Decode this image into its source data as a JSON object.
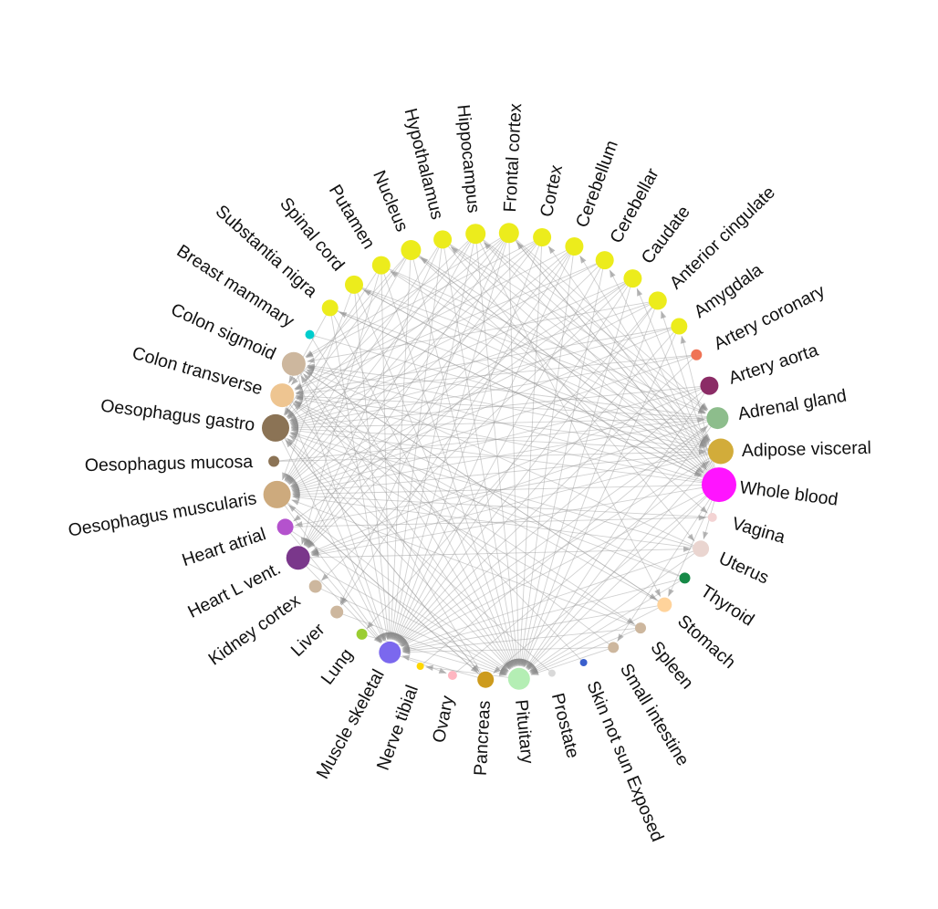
{
  "network": {
    "nodes": [
      {
        "label": "Frontal cortex",
        "color": "#ecec1c",
        "size": 11
      },
      {
        "label": "Cortex",
        "color": "#ecec1c",
        "size": 10
      },
      {
        "label": "Cerebellum",
        "color": "#ecec1c",
        "size": 10
      },
      {
        "label": "Cerebellar",
        "color": "#ecec1c",
        "size": 10
      },
      {
        "label": "Caudate",
        "color": "#ecec1c",
        "size": 10
      },
      {
        "label": "Anterior cingulate",
        "color": "#ecec1c",
        "size": 10
      },
      {
        "label": "Amygdala",
        "color": "#ecec1c",
        "size": 9
      },
      {
        "label": "Artery coronary",
        "color": "#ef7355",
        "size": 6
      },
      {
        "label": "Artery aorta",
        "color": "#8b2c66",
        "size": 10
      },
      {
        "label": "Adrenal gland",
        "color": "#8dbd8c",
        "size": 12
      },
      {
        "label": "Adipose visceral",
        "color": "#d2ac3a",
        "size": 14
      },
      {
        "label": "Whole blood",
        "color": "#ff14ff",
        "size": 19
      },
      {
        "label": "Vagina",
        "color": "#f3d3d3",
        "size": 5
      },
      {
        "label": "Uterus",
        "color": "#ead5d0",
        "size": 9
      },
      {
        "label": "Thyroid",
        "color": "#168947",
        "size": 6
      },
      {
        "label": "Stomach",
        "color": "#ffd39b",
        "size": 8
      },
      {
        "label": "Spleen",
        "color": "#cdb79e",
        "size": 6
      },
      {
        "label": "Small intestine",
        "color": "#cdb79e",
        "size": 6
      },
      {
        "label": "Skin not sun Exposed",
        "color": "#3a5fcd",
        "size": 4
      },
      {
        "label": "Prostate",
        "color": "#d9d9d9",
        "size": 4
      },
      {
        "label": "Pituitary",
        "color": "#b4eeb4",
        "size": 12
      },
      {
        "label": "Pancreas",
        "color": "#cd9b1d",
        "size": 9
      },
      {
        "label": "Ovary",
        "color": "#ffb6c1",
        "size": 5
      },
      {
        "label": "Nerve tibial",
        "color": "#ffd700",
        "size": 4
      },
      {
        "label": "Muscle skeletal",
        "color": "#7b68ee",
        "size": 12
      },
      {
        "label": "Lung",
        "color": "#9acd32",
        "size": 6
      },
      {
        "label": "Liver",
        "color": "#cdb79e",
        "size": 7
      },
      {
        "label": "Kidney cortex",
        "color": "#cdb79e",
        "size": 7
      },
      {
        "label": "Heart L vent.",
        "color": "#7a378b",
        "size": 13
      },
      {
        "label": "Heart atrial",
        "color": "#b452cd",
        "size": 9
      },
      {
        "label": "Oesophagus muscularis",
        "color": "#cdaa7d",
        "size": 15
      },
      {
        "label": "Oesophagus mucosa",
        "color": "#8b7355",
        "size": 6
      },
      {
        "label": "Oesophagus gastro",
        "color": "#8b7355",
        "size": 15
      },
      {
        "label": "Colon transverse",
        "color": "#eec591",
        "size": 13
      },
      {
        "label": "Colon sigmoid",
        "color": "#cdb79e",
        "size": 13
      },
      {
        "label": "Breast mammary",
        "color": "#00cdcd",
        "size": 5
      },
      {
        "label": "Substantia nigra",
        "color": "#ecec1c",
        "size": 9
      },
      {
        "label": "Spinal cord",
        "color": "#ecec1c",
        "size": 10
      },
      {
        "label": "Putamen",
        "color": "#ecec1c",
        "size": 10
      },
      {
        "label": "Nucleus",
        "color": "#ecec1c",
        "size": 11
      },
      {
        "label": "Hypothalamus",
        "color": "#ecec1c",
        "size": 10
      },
      {
        "label": "Hippocampus",
        "color": "#ecec1c",
        "size": 11
      }
    ],
    "edges": [
      [
        11,
        0
      ],
      [
        11,
        1
      ],
      [
        11,
        2
      ],
      [
        11,
        3
      ],
      [
        11,
        4
      ],
      [
        11,
        5
      ],
      [
        11,
        6
      ],
      [
        11,
        20
      ],
      [
        11,
        24
      ],
      [
        11,
        28
      ],
      [
        11,
        30
      ],
      [
        11,
        32
      ],
      [
        11,
        33
      ],
      [
        11,
        34
      ],
      [
        11,
        36
      ],
      [
        11,
        37
      ],
      [
        11,
        38
      ],
      [
        11,
        39
      ],
      [
        11,
        40
      ],
      [
        11,
        41
      ],
      [
        11,
        15
      ],
      [
        11,
        13
      ],
      [
        11,
        17
      ],
      [
        11,
        21
      ],
      [
        0,
        20
      ],
      [
        0,
        24
      ],
      [
        0,
        30
      ],
      [
        0,
        32
      ],
      [
        0,
        28
      ],
      [
        0,
        11
      ],
      [
        0,
        9
      ],
      [
        0,
        10
      ],
      [
        0,
        34
      ],
      [
        0,
        26
      ],
      [
        41,
        20
      ],
      [
        41,
        24
      ],
      [
        41,
        30
      ],
      [
        41,
        10
      ],
      [
        41,
        32
      ],
      [
        41,
        9
      ],
      [
        41,
        28
      ],
      [
        41,
        15
      ],
      [
        40,
        20
      ],
      [
        40,
        24
      ],
      [
        40,
        10
      ],
      [
        40,
        30
      ],
      [
        40,
        9
      ],
      [
        40,
        13
      ],
      [
        40,
        28
      ],
      [
        39,
        20
      ],
      [
        39,
        24
      ],
      [
        39,
        11
      ],
      [
        39,
        10
      ],
      [
        39,
        30
      ],
      [
        39,
        32
      ],
      [
        39,
        12
      ],
      [
        39,
        33
      ],
      [
        38,
        20
      ],
      [
        38,
        24
      ],
      [
        38,
        10
      ],
      [
        38,
        9
      ],
      [
        38,
        32
      ],
      [
        38,
        28
      ],
      [
        37,
        20
      ],
      [
        37,
        24
      ],
      [
        37,
        10
      ],
      [
        37,
        9
      ],
      [
        37,
        11
      ],
      [
        37,
        30
      ],
      [
        36,
        20
      ],
      [
        36,
        24
      ],
      [
        36,
        10
      ],
      [
        36,
        11
      ],
      [
        36,
        33
      ],
      [
        1,
        20
      ],
      [
        1,
        24
      ],
      [
        1,
        30
      ],
      [
        1,
        32
      ],
      [
        1,
        28
      ],
      [
        1,
        34
      ],
      [
        2,
        20
      ],
      [
        2,
        24
      ],
      [
        2,
        30
      ],
      [
        2,
        33
      ],
      [
        2,
        28
      ],
      [
        2,
        26
      ],
      [
        3,
        20
      ],
      [
        3,
        24
      ],
      [
        3,
        32
      ],
      [
        3,
        28
      ],
      [
        3,
        33
      ],
      [
        4,
        20
      ],
      [
        4,
        24
      ],
      [
        4,
        32
      ],
      [
        4,
        30
      ],
      [
        4,
        29
      ],
      [
        4,
        27
      ],
      [
        5,
        20
      ],
      [
        5,
        24
      ],
      [
        5,
        30
      ],
      [
        5,
        32
      ],
      [
        5,
        34
      ],
      [
        5,
        25
      ],
      [
        6,
        20
      ],
      [
        6,
        24
      ],
      [
        6,
        32
      ],
      [
        6,
        33
      ],
      [
        6,
        30
      ],
      [
        9,
        20
      ],
      [
        9,
        24
      ],
      [
        9,
        30
      ],
      [
        9,
        32
      ],
      [
        9,
        33
      ],
      [
        9,
        34
      ],
      [
        9,
        28
      ],
      [
        10,
        20
      ],
      [
        10,
        24
      ],
      [
        10,
        30
      ],
      [
        10,
        32
      ],
      [
        10,
        33
      ],
      [
        10,
        34
      ],
      [
        10,
        28
      ],
      [
        10,
        29
      ],
      [
        8,
        30
      ],
      [
        8,
        32
      ],
      [
        8,
        24
      ],
      [
        8,
        20
      ],
      [
        8,
        28
      ],
      [
        7,
        30
      ],
      [
        7,
        32
      ],
      [
        7,
        33
      ],
      [
        7,
        24
      ],
      [
        13,
        30
      ],
      [
        13,
        32
      ],
      [
        13,
        24
      ],
      [
        13,
        20
      ],
      [
        13,
        34
      ],
      [
        14,
        20
      ],
      [
        14,
        24
      ],
      [
        14,
        32
      ],
      [
        14,
        33
      ],
      [
        15,
        20
      ],
      [
        15,
        24
      ],
      [
        15,
        33
      ],
      [
        15,
        34
      ],
      [
        16,
        20
      ],
      [
        16,
        24
      ],
      [
        16,
        30
      ],
      [
        16,
        32
      ],
      [
        17,
        24
      ],
      [
        17,
        20
      ],
      [
        17,
        33
      ],
      [
        21,
        24
      ],
      [
        21,
        32
      ],
      [
        21,
        30
      ],
      [
        21,
        34
      ],
      [
        30,
        24
      ],
      [
        30,
        20
      ],
      [
        32,
        24
      ],
      [
        32,
        20
      ],
      [
        33,
        24
      ],
      [
        33,
        20
      ],
      [
        34,
        24
      ],
      [
        34,
        20
      ],
      [
        28,
        24
      ],
      [
        28,
        20
      ],
      [
        29,
        24
      ],
      [
        29,
        20
      ],
      [
        26,
        20
      ],
      [
        25,
        20
      ],
      [
        27,
        20
      ],
      [
        20,
        23
      ],
      [
        24,
        22
      ],
      [
        30,
        21
      ],
      [
        32,
        21
      ],
      [
        33,
        16
      ],
      [
        34,
        15
      ],
      [
        28,
        13
      ],
      [
        29,
        12
      ],
      [
        31,
        10
      ],
      [
        31,
        9
      ],
      [
        35,
        10
      ],
      [
        35,
        20
      ],
      [
        12,
        30
      ],
      [
        19,
        32
      ],
      [
        18,
        34
      ],
      [
        22,
        10
      ],
      [
        23,
        9
      ]
    ]
  }
}
